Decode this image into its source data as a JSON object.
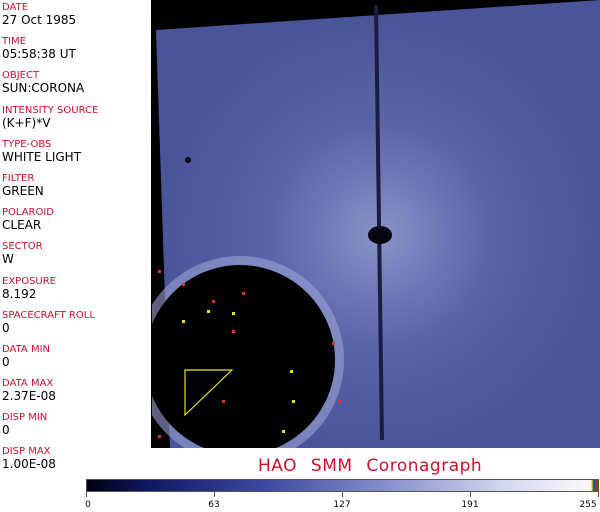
{
  "header_fields": [
    {
      "label": "DATE",
      "value": "27 Oct 1985"
    },
    {
      "label": "TIME",
      "value": "05:58:38 UT"
    },
    {
      "label": "OBJECT",
      "value": "SUN:CORONA"
    },
    {
      "label": "INTENSITY SOURCE",
      "value": "(K+F)*V"
    },
    {
      "label": "TYPE-OBS",
      "value": "WHITE LIGHT"
    },
    {
      "label": "FILTER",
      "value": "GREEN"
    },
    {
      "label": "POLAROID",
      "value": "CLEAR"
    },
    {
      "label": "SECTOR",
      "value": "W"
    },
    {
      "label": "EXPOSURE",
      "value": "8.192"
    },
    {
      "label": "SPACECRAFT ROLL",
      "value": "0"
    },
    {
      "label": "DATA MIN",
      "value": "0"
    },
    {
      "label": "DATA MAX",
      "value": "2.37E-08"
    },
    {
      "label": "DISP MIN",
      "value": "0"
    },
    {
      "label": "DISP MAX",
      "value": "1.00E-08"
    }
  ],
  "title": "HAO   SMM Coronagraph",
  "colorbar": {
    "ticks": [
      "0",
      "63",
      "127",
      "191",
      "255"
    ],
    "colors": {
      "low": "#000010",
      "mid": "#3d4aa0",
      "high": "#f6f6f8"
    }
  },
  "colors": {
    "label": "#c8102e",
    "title": "#d0102e"
  }
}
